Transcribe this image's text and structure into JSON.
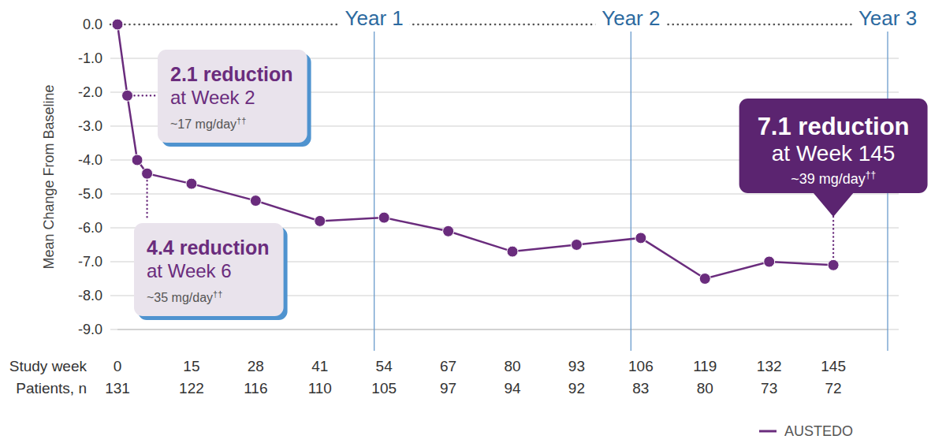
{
  "chart_data": {
    "type": "line",
    "x_label": "Study week",
    "y_label": "Mean Change From Baseline",
    "x": [
      0,
      2,
      4,
      6,
      15,
      28,
      41,
      54,
      67,
      80,
      93,
      106,
      119,
      132,
      145
    ],
    "series": [
      {
        "name": "AUSTEDO",
        "color": "#6a2c7d",
        "marker": "circle",
        "line_style": "solid",
        "values": [
          0,
          -2.1,
          -4.0,
          -4.4,
          -4.7,
          -5.2,
          -5.8,
          -5.7,
          -6.1,
          -6.7,
          -6.5,
          -6.3,
          -7.5,
          -7.0,
          -7.1
        ]
      }
    ],
    "xlim": [
      0,
      156
    ],
    "xticks": [
      0,
      15,
      28,
      41,
      54,
      67,
      80,
      93,
      106,
      119,
      132,
      145
    ],
    "ylim": [
      -9,
      0
    ],
    "yticks": [
      {
        "value": 0,
        "label": "0.0"
      },
      {
        "value": -1,
        "label": "-1.0"
      },
      {
        "value": -2,
        "label": "-2.0"
      },
      {
        "value": -3,
        "label": "-3.0"
      },
      {
        "value": -4,
        "label": "-4.0"
      },
      {
        "value": -5,
        "label": "-5.0"
      },
      {
        "value": -6,
        "label": "-6.0"
      },
      {
        "value": -7,
        "label": "-7.0"
      },
      {
        "value": -8,
        "label": "-8.0"
      },
      {
        "value": -9,
        "label": "-9.0"
      }
    ],
    "grid": true,
    "legend": "lower right",
    "patients_label": "Patients, n",
    "patients_n": [
      131,
      122,
      116,
      110,
      105,
      97,
      94,
      92,
      83,
      80,
      73,
      72
    ],
    "year_markers": [
      {
        "value": 52,
        "label": "Year 1"
      },
      {
        "value": 104,
        "label": "Year 2"
      },
      {
        "value": 156,
        "label": "Year 3"
      }
    ],
    "annotations": [
      {
        "x": 2,
        "y": -2.1,
        "title": "2.1 reduction",
        "text": "at Week 2",
        "dose": "~17 mg/day",
        "footnote": "††"
      },
      {
        "x": 6,
        "y": -4.4,
        "title": "4.4 reduction",
        "text": "at Week 6",
        "dose": "~35 mg/day",
        "footnote": "††"
      },
      {
        "x": 145,
        "y": -7.1,
        "title": "7.1 reduction",
        "text": "at Week 145",
        "dose": "~39 mg/day",
        "footnote": "††"
      }
    ]
  }
}
